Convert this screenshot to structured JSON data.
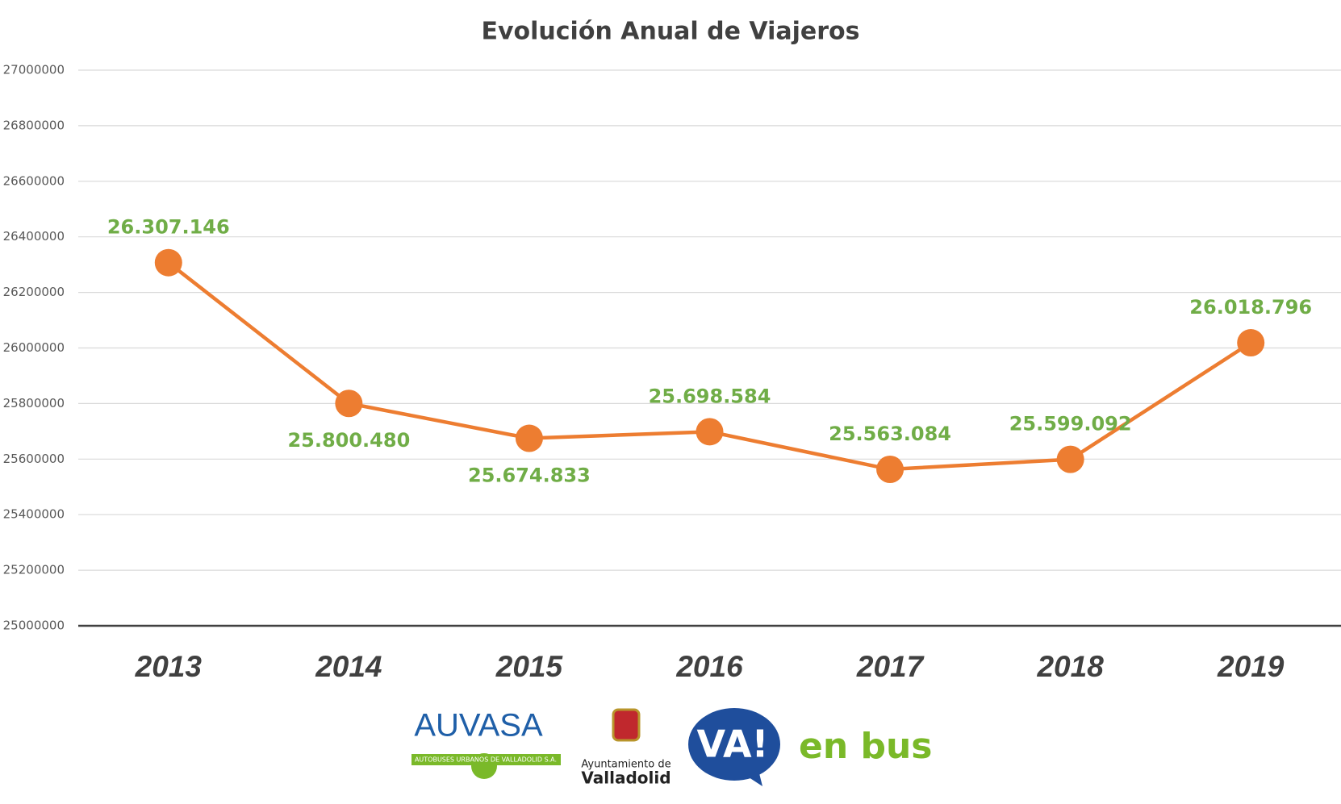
{
  "chart_data": {
    "type": "line",
    "title": "Evolución Anual de Viajeros",
    "categories": [
      "2013",
      "2014",
      "2015",
      "2016",
      "2017",
      "2018",
      "2019"
    ],
    "series": [
      {
        "name": "Viajeros",
        "color": "#ed7d31",
        "values": [
          26307146,
          25800480,
          25674833,
          25698584,
          25563084,
          25599092,
          26018796
        ],
        "value_labels": [
          "26.307.146",
          "25.800.480",
          "25.674.833",
          "25.698.584",
          "25.563.084",
          "25.599.092",
          "26.018.796"
        ]
      }
    ],
    "ylim": [
      25000000,
      27000000
    ],
    "yticks": [
      25000000,
      25200000,
      25400000,
      25600000,
      25800000,
      26000000,
      26200000,
      26400000,
      26600000,
      26800000,
      27000000
    ],
    "grid": true,
    "label_color": "#70ad47"
  },
  "footer_logos": {
    "auvasa": "AUVASA",
    "auvasa_subtitle": "AUTOBUSES URBANOS DE VALLADOLID S.A.",
    "ayuntamiento_line1": "Ayuntamiento de",
    "ayuntamiento_line2": "Valladolid",
    "vaenbus_mark": "VA!",
    "vaenbus_text": "en bus"
  }
}
